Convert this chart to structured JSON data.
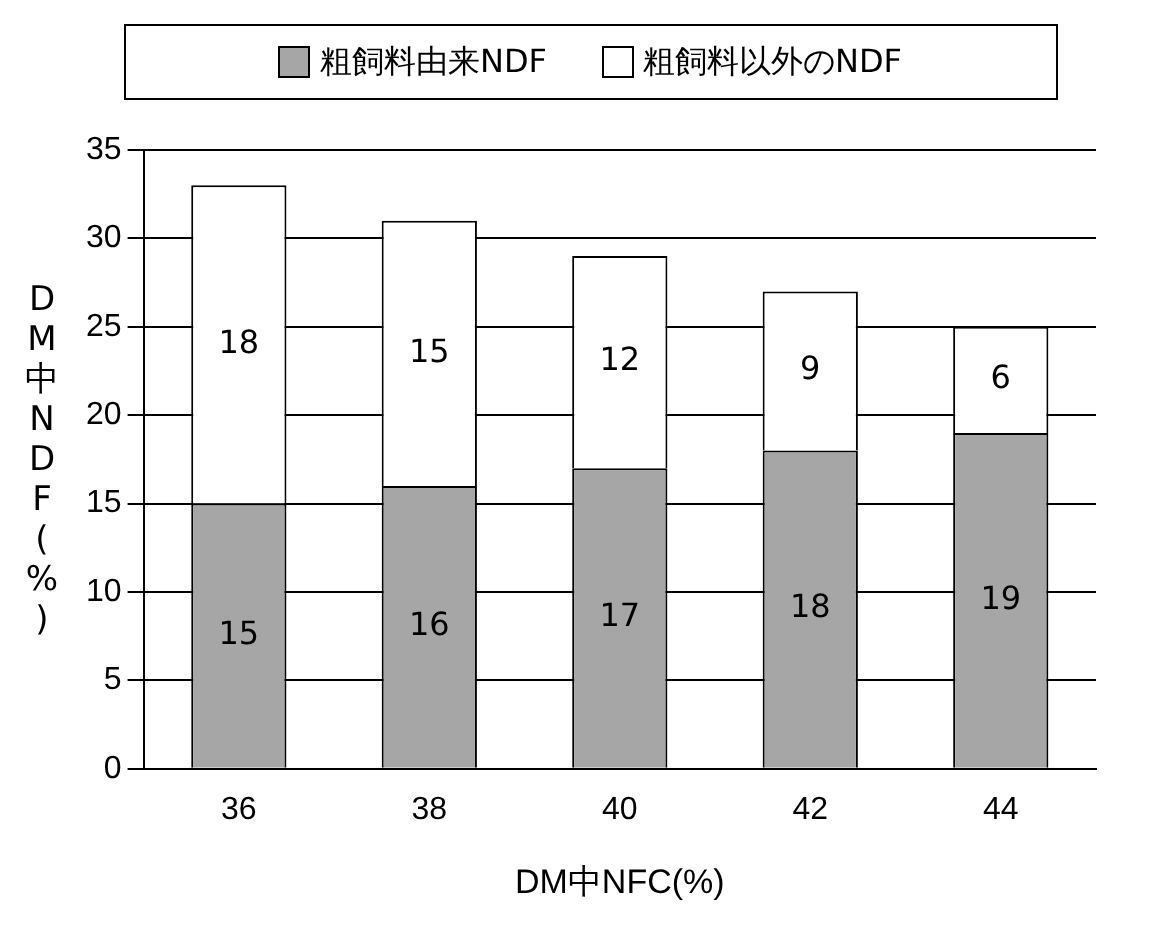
{
  "chart_data": {
    "type": "bar",
    "stacked": true,
    "xlabel": "DM中NFC(%)",
    "ylabel": "DM中NDF(%)",
    "categories": [
      "36",
      "38",
      "40",
      "42",
      "44"
    ],
    "series": [
      {
        "name": "粗飼料由来NDF",
        "color": "#a6a6a6",
        "values": [
          15,
          16,
          17,
          18,
          19
        ]
      },
      {
        "name": "粗飼料以外のNDF",
        "color": "#ffffff",
        "values": [
          18,
          15,
          12,
          9,
          6
        ]
      }
    ],
    "ylim": [
      0,
      35
    ],
    "yticks": [
      0,
      5,
      10,
      15,
      20,
      25,
      30,
      35
    ],
    "grid": "y",
    "legend": "top",
    "data_labels": true
  }
}
